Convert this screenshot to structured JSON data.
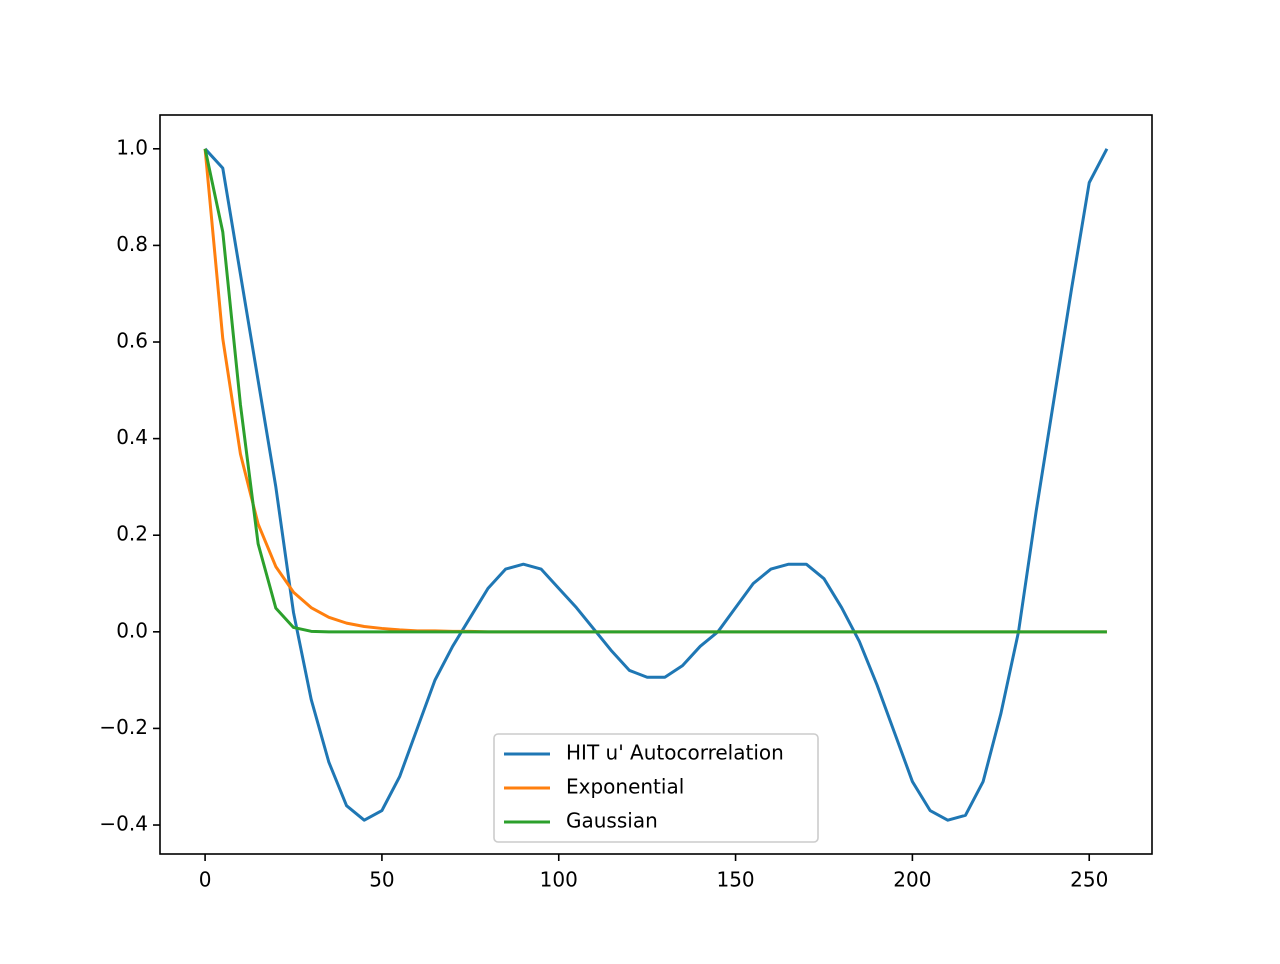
{
  "chart_data": {
    "type": "line",
    "x": [
      0,
      5,
      10,
      15,
      20,
      25,
      30,
      35,
      40,
      45,
      50,
      55,
      60,
      65,
      70,
      75,
      80,
      85,
      90,
      95,
      100,
      105,
      110,
      115,
      120,
      125,
      130,
      135,
      140,
      145,
      150,
      155,
      160,
      165,
      170,
      175,
      180,
      185,
      190,
      195,
      200,
      205,
      210,
      215,
      220,
      225,
      230,
      235,
      240,
      245,
      250,
      255
    ],
    "series": [
      {
        "name": "HIT u' Autocorrelation",
        "color": "#1f77b4",
        "values": [
          1.0,
          0.96,
          0.74,
          0.52,
          0.3,
          0.04,
          -0.14,
          -0.27,
          -0.36,
          -0.39,
          -0.37,
          -0.3,
          -0.2,
          -0.1,
          -0.03,
          0.03,
          0.09,
          0.13,
          0.14,
          0.13,
          0.09,
          0.05,
          0.005,
          -0.04,
          -0.08,
          -0.094,
          -0.094,
          -0.07,
          -0.03,
          0.0,
          0.05,
          0.1,
          0.13,
          0.14,
          0.14,
          0.11,
          0.05,
          -0.02,
          -0.11,
          -0.21,
          -0.31,
          -0.37,
          -0.39,
          -0.38,
          -0.31,
          -0.17,
          0.0,
          0.25,
          0.48,
          0.71,
          0.93,
          1.0
        ]
      },
      {
        "name": "Exponential",
        "color": "#ff7f0e",
        "values": [
          1.0,
          0.607,
          0.368,
          0.223,
          0.135,
          0.082,
          0.05,
          0.03,
          0.018,
          0.011,
          0.007,
          0.004,
          0.002,
          0.002,
          0.001,
          0.001,
          0,
          0,
          0,
          0,
          0,
          0,
          0,
          0,
          0,
          0,
          0,
          0,
          0,
          0,
          0,
          0,
          0,
          0,
          0,
          0,
          0,
          0,
          0,
          0,
          0,
          0,
          0,
          0,
          0,
          0,
          0,
          0,
          0,
          0,
          0,
          0
        ]
      },
      {
        "name": "Gaussian",
        "color": "#2ca02c",
        "values": [
          1.0,
          0.828,
          0.47,
          0.182,
          0.049,
          0.009,
          0.001,
          0,
          0,
          0,
          0,
          0,
          0,
          0,
          0,
          0,
          0,
          0,
          0,
          0,
          0,
          0,
          0,
          0,
          0,
          0,
          0,
          0,
          0,
          0,
          0,
          0,
          0,
          0,
          0,
          0,
          0,
          0,
          0,
          0,
          0,
          0,
          0,
          0,
          0,
          0,
          0,
          0,
          0,
          0,
          0,
          0
        ]
      }
    ],
    "xlim": [
      -12.75,
      267.75
    ],
    "xticks": [
      0,
      50,
      100,
      150,
      200,
      250
    ],
    "ylim": [
      -0.46,
      1.07
    ],
    "yticks": [
      {
        "value": -0.4,
        "label": "−0.4"
      },
      {
        "value": -0.2,
        "label": "−0.2"
      },
      {
        "value": 0,
        "label": "0.0"
      },
      {
        "value": 0.2,
        "label": "0.2"
      },
      {
        "value": 0.4,
        "label": "0.4"
      },
      {
        "value": 0.6,
        "label": "0.6"
      },
      {
        "value": 0.8,
        "label": "0.8"
      },
      {
        "value": 1,
        "label": "1.0"
      }
    ],
    "legend": "lower center"
  }
}
